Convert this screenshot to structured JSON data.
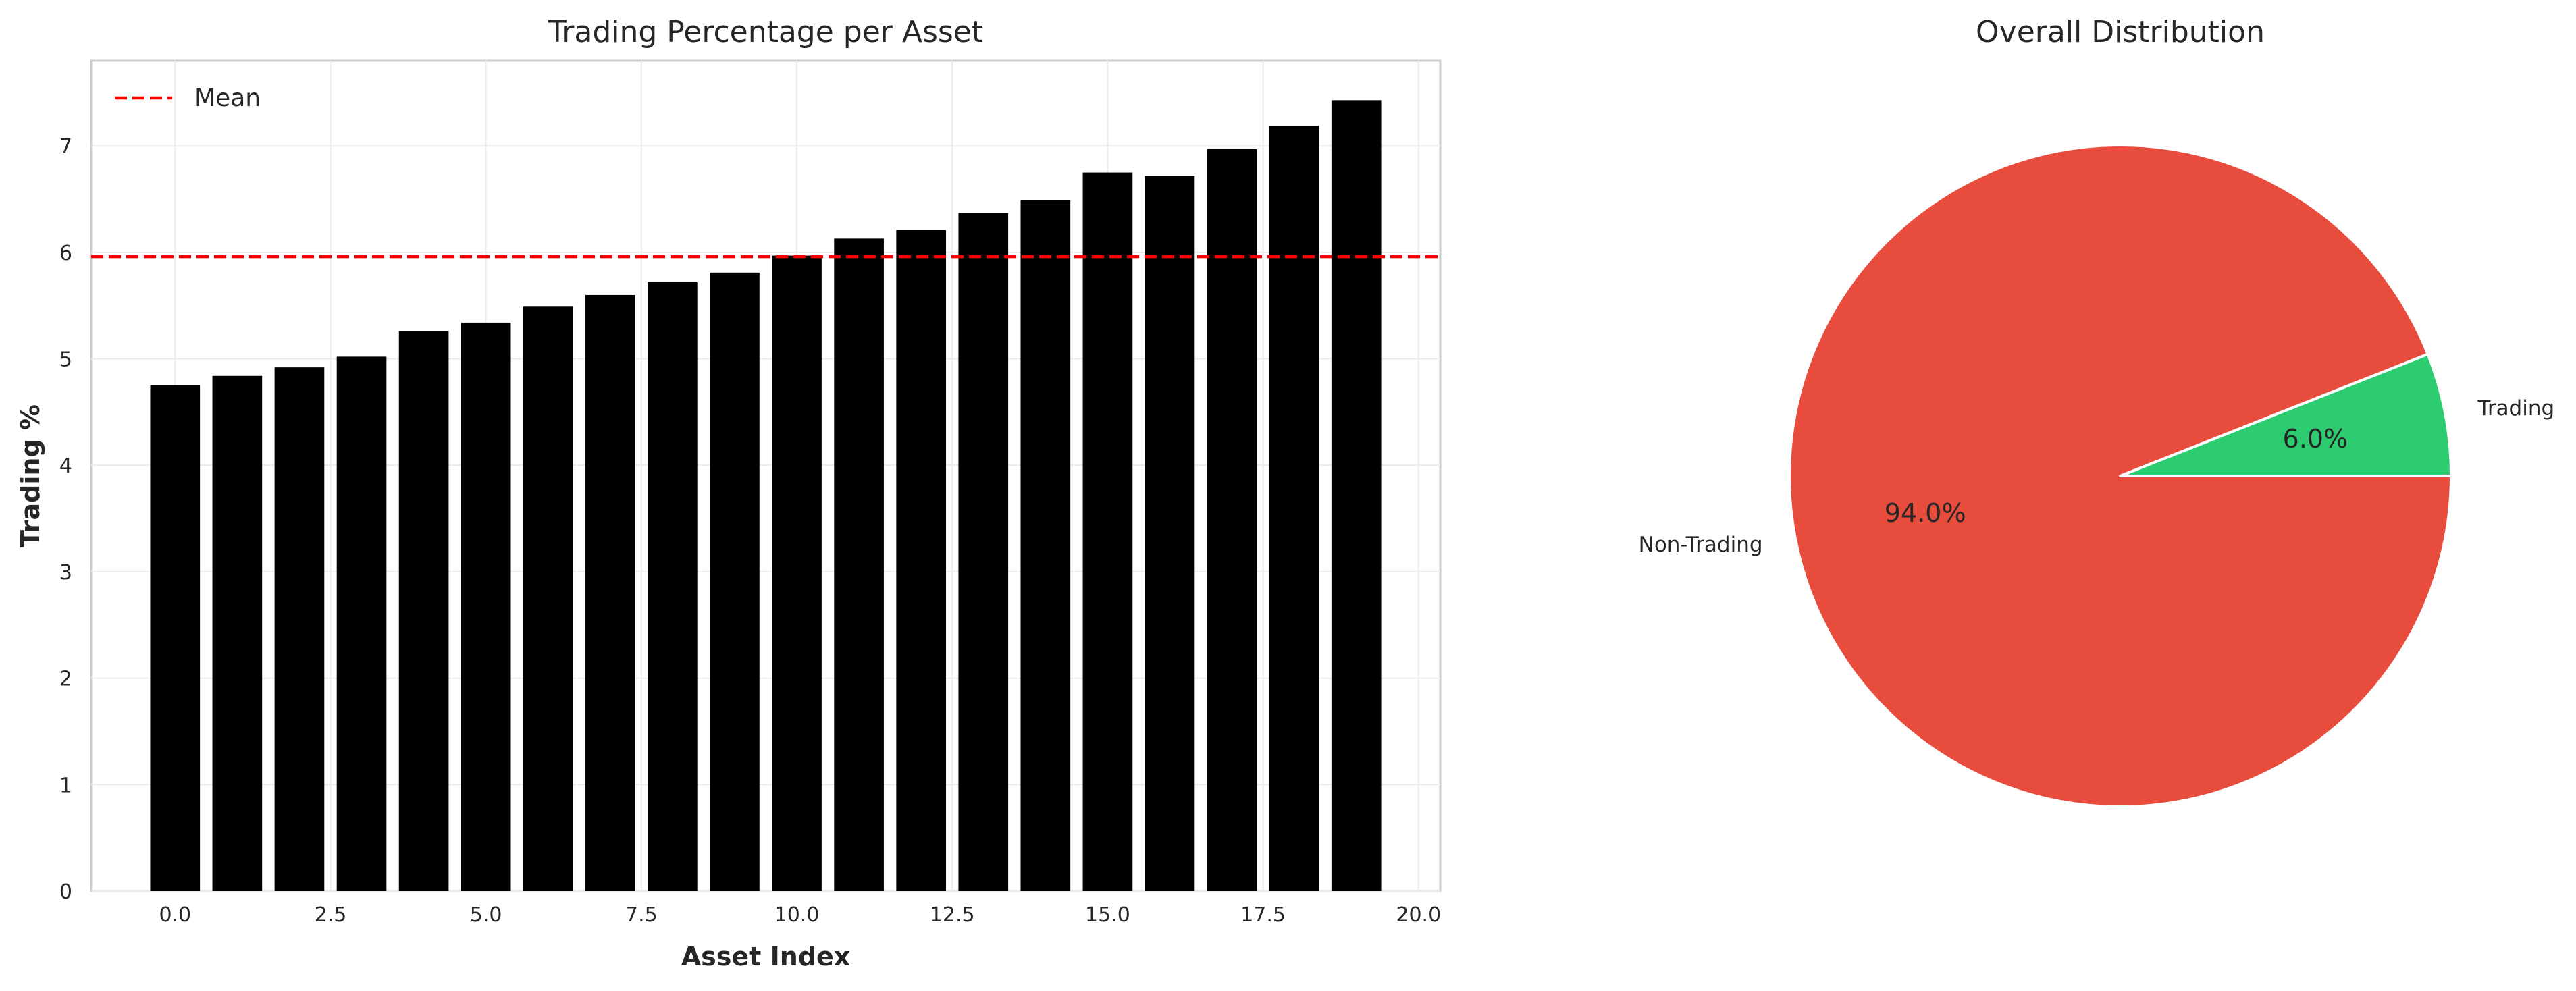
{
  "chart_data": [
    {
      "type": "bar",
      "title": "Trading Percentage per Asset",
      "xlabel": "Asset Index",
      "ylabel": "Trading %",
      "x": [
        0,
        1,
        2,
        3,
        4,
        5,
        6,
        7,
        8,
        9,
        10,
        11,
        12,
        13,
        14,
        15,
        16,
        17,
        18,
        19
      ],
      "values": [
        4.75,
        4.84,
        4.92,
        5.02,
        5.26,
        5.34,
        5.49,
        5.6,
        5.72,
        5.81,
        5.97,
        6.13,
        6.21,
        6.37,
        6.49,
        6.75,
        6.72,
        6.97,
        7.19,
        7.43
      ],
      "bar_color": "#000000",
      "xlim": [
        -1.35,
        20.35
      ],
      "ylim": [
        0,
        7.8
      ],
      "xticks": [
        "0.0",
        "2.5",
        "5.0",
        "7.5",
        "10.0",
        "12.5",
        "15.0",
        "17.5",
        "20.0"
      ],
      "yticks": [
        "0",
        "1",
        "2",
        "3",
        "4",
        "5",
        "6",
        "7"
      ],
      "mean": 5.96,
      "mean_color": "#ff0000",
      "legend": {
        "label": "Mean",
        "placement": "top-left"
      },
      "grid": true
    },
    {
      "type": "pie",
      "title": "Overall Distribution",
      "slices": [
        {
          "label": "Trading",
          "value": 6.0,
          "pct_label": "6.0%",
          "color": "#2ecc71"
        },
        {
          "label": "Non-Trading",
          "value": 94.0,
          "pct_label": "94.0%",
          "color": "#e74c3c"
        }
      ]
    }
  ]
}
